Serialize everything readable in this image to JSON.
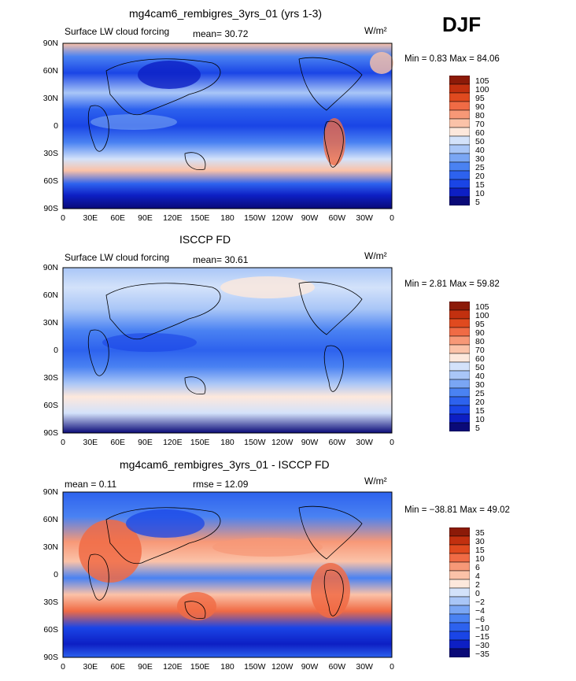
{
  "season": "DJF",
  "panels": [
    {
      "title": "mg4cam6_rembigres_3yrs_01 (yrs 1-3)",
      "left_label": "Surface LW cloud forcing",
      "stat1": "mean=   30.72",
      "stat2": "",
      "units": "W/m²",
      "minmax": "Min =    0.83 Max =   84.06",
      "colorbar_labels": [
        "105",
        "100",
        "95",
        "90",
        "80",
        "70",
        "60",
        "50",
        "40",
        "30",
        "25",
        "20",
        "15",
        "10",
        "5"
      ]
    },
    {
      "title": "ISCCP FD",
      "left_label": "Surface LW cloud forcing",
      "stat1": "mean=   30.61",
      "stat2": "",
      "units": "W/m²",
      "minmax": "Min =    2.81 Max =   59.82",
      "colorbar_labels": [
        "105",
        "100",
        "95",
        "90",
        "80",
        "70",
        "60",
        "50",
        "40",
        "30",
        "25",
        "20",
        "15",
        "10",
        "5"
      ]
    },
    {
      "title": "mg4cam6_rembigres_3yrs_01 - ISCCP FD",
      "left_label": "mean =    0.11",
      "stat1": "",
      "stat2": "rmse =   12.09",
      "units": "W/m²",
      "minmax": "Min = −38.81 Max =   49.02",
      "colorbar_labels": [
        "35",
        "30",
        "15",
        "10",
        "6",
        "4",
        "2",
        "0",
        "−2",
        "−4",
        "−6",
        "−10",
        "−15",
        "−30",
        "−35"
      ]
    }
  ],
  "axes": {
    "lat_labels": [
      "90N",
      "60N",
      "30N",
      "0",
      "30S",
      "60S",
      "90S"
    ],
    "lon_labels": [
      "0",
      "30E",
      "60E",
      "90E",
      "120E",
      "150E",
      "180",
      "150W",
      "120W",
      "90W",
      "60W",
      "30W",
      "0"
    ]
  },
  "colors": {
    "abs_scale": [
      "#0a0a78",
      "#0d1fc4",
      "#1a45e6",
      "#2d62ee",
      "#4a82f2",
      "#7aa6f4",
      "#a9c6f7",
      "#d3e2fa",
      "#fde8dc",
      "#fbc2a8",
      "#f79877",
      "#f06b45",
      "#e04a1f",
      "#c2300f",
      "#8c1a08"
    ],
    "diff_scale": [
      "#0a0a78",
      "#0d1fc4",
      "#1a45e6",
      "#2d62ee",
      "#4a82f2",
      "#7aa6f4",
      "#a9c6f7",
      "#d3e2fa",
      "#fde8dc",
      "#fbc2a8",
      "#f79877",
      "#f06b45",
      "#e04a1f",
      "#c2300f",
      "#8c1a08"
    ]
  }
}
